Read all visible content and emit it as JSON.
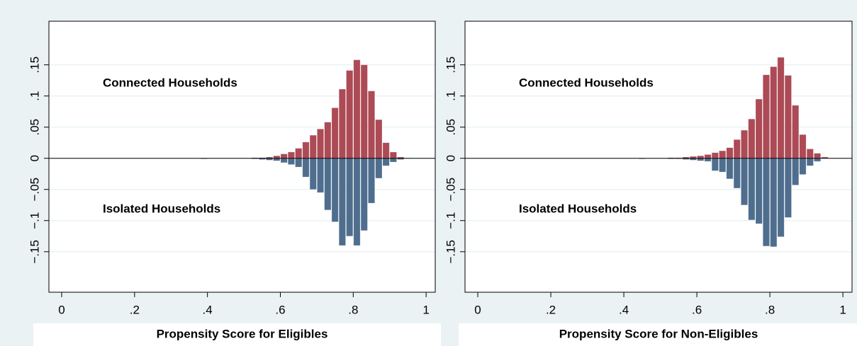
{
  "chart_data": [
    {
      "type": "histogram",
      "xlabel": "Propensity Score for Eligibles",
      "bins": [
        0.36,
        0.38,
        0.4,
        0.42,
        0.44,
        0.46,
        0.48,
        0.5,
        0.52,
        0.54,
        0.56,
        0.58,
        0.6,
        0.62,
        0.64,
        0.66,
        0.68,
        0.7,
        0.72,
        0.74,
        0.76,
        0.78,
        0.8,
        0.82,
        0.84,
        0.86,
        0.88,
        0.9,
        0.92,
        0.94,
        0.96
      ],
      "series": [
        {
          "name": "Connected Households",
          "color": "#ac4a55",
          "values": [
            0,
            0,
            0,
            0,
            0,
            0,
            0,
            0,
            0.001,
            0.001,
            0.002,
            0.004,
            0.007,
            0.01,
            0.016,
            0.026,
            0.037,
            0.047,
            0.058,
            0.081,
            0.111,
            0.141,
            0.158,
            0.15,
            0.108,
            0.062,
            0.025,
            0.01,
            0.002,
            0.0005
          ]
        },
        {
          "name": "Isolated Households",
          "color": "#4f6e8e",
          "values": [
            0,
            -0.001,
            0,
            0,
            0,
            0,
            0,
            0,
            -0.001,
            -0.002,
            -0.003,
            -0.004,
            -0.007,
            -0.01,
            -0.014,
            -0.03,
            -0.05,
            -0.055,
            -0.083,
            -0.102,
            -0.14,
            -0.125,
            -0.14,
            -0.116,
            -0.072,
            -0.032,
            -0.012,
            -0.006,
            -0.002,
            0
          ]
        }
      ],
      "xlim": [
        -0.035,
        1.025
      ],
      "ylim": [
        -0.215,
        0.22
      ],
      "xticks": [
        0,
        {
          "value": 0.2,
          "label": ".2"
        },
        {
          "value": 0.4,
          "label": ".4"
        },
        {
          "value": 0.6,
          "label": ".6"
        },
        {
          "value": 0.8,
          "label": ".8"
        },
        1
      ],
      "yticks": [
        {
          "value": -0.15,
          "label": "−.15"
        },
        {
          "value": -0.1,
          "label": "−.1"
        },
        {
          "value": -0.05,
          "label": "−.05"
        },
        0,
        {
          "value": 0.05,
          "label": ".05"
        },
        {
          "value": 0.1,
          "label": ".1"
        },
        {
          "value": 0.15,
          "label": ".15"
        }
      ],
      "grid": true
    },
    {
      "type": "histogram",
      "xlabel": "Propensity Score for Non-Eligibles",
      "bins": [
        0.36,
        0.38,
        0.4,
        0.42,
        0.44,
        0.46,
        0.48,
        0.5,
        0.52,
        0.54,
        0.56,
        0.58,
        0.6,
        0.62,
        0.64,
        0.66,
        0.68,
        0.7,
        0.72,
        0.74,
        0.76,
        0.78,
        0.8,
        0.82,
        0.84,
        0.86,
        0.88,
        0.9,
        0.92,
        0.94,
        0.96
      ],
      "series": [
        {
          "name": "Connected Households",
          "color": "#ac4a55",
          "values": [
            0,
            0,
            0,
            0,
            0,
            0,
            0,
            0,
            0.001,
            0.001,
            0.002,
            0.003,
            0.004,
            0.006,
            0.009,
            0.012,
            0.017,
            0.03,
            0.045,
            0.063,
            0.095,
            0.134,
            0.147,
            0.162,
            0.133,
            0.085,
            0.038,
            0.015,
            0.008,
            0.002
          ]
        },
        {
          "name": "Isolated Households",
          "color": "#4f6e8e",
          "values": [
            0,
            0,
            0,
            0,
            -0.001,
            0,
            0,
            0,
            -0.001,
            -0.001,
            -0.002,
            -0.003,
            -0.004,
            -0.005,
            -0.02,
            -0.022,
            -0.033,
            -0.048,
            -0.075,
            -0.099,
            -0.105,
            -0.141,
            -0.142,
            -0.126,
            -0.095,
            -0.043,
            -0.026,
            -0.012,
            -0.005,
            0
          ]
        }
      ],
      "xlim": [
        -0.035,
        1.025
      ],
      "ylim": [
        -0.215,
        0.22
      ],
      "xticks": [
        0,
        {
          "value": 0.2,
          "label": ".2"
        },
        {
          "value": 0.4,
          "label": ".4"
        },
        {
          "value": 0.6,
          "label": ".6"
        },
        {
          "value": 0.8,
          "label": ".8"
        },
        1
      ],
      "yticks": [
        {
          "value": -0.15,
          "label": "−.15"
        },
        {
          "value": -0.1,
          "label": "−.1"
        },
        {
          "value": -0.05,
          "label": "−.05"
        },
        0,
        {
          "value": 0.05,
          "label": ".05"
        },
        {
          "value": 0.1,
          "label": ".1"
        },
        {
          "value": 0.15,
          "label": ".15"
        }
      ],
      "grid": true
    }
  ]
}
